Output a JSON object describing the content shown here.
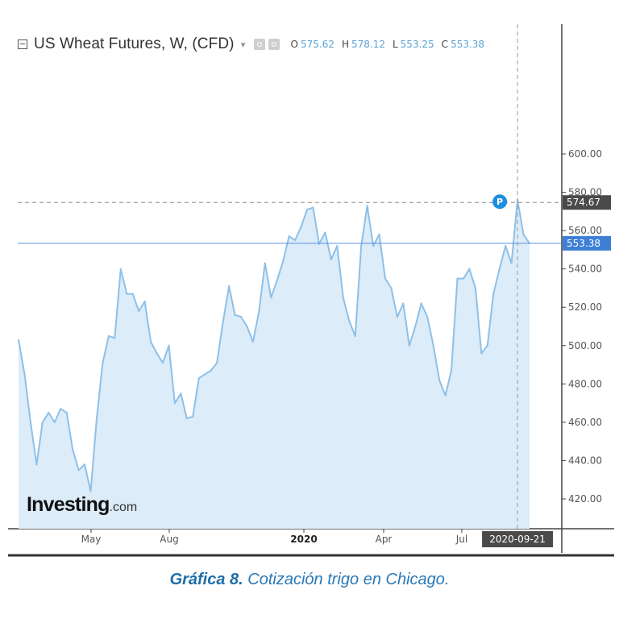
{
  "header": {
    "title": "US Wheat Futures, W, (CFD)",
    "ohlc": [
      {
        "key": "O",
        "value": "575.62"
      },
      {
        "key": "H",
        "value": "578.12"
      },
      {
        "key": "L",
        "value": "553.25"
      },
      {
        "key": "C",
        "value": "553.38"
      }
    ]
  },
  "logo": {
    "brand": "Investing",
    "suffix": ".com"
  },
  "caption": {
    "label": "Gráfica 8.",
    "text": "Cotización trigo en Chicago."
  },
  "colors": {
    "line": "#8ec0e8",
    "fill": "#dcecf8",
    "price_label_bg": "#3d7fd6",
    "crosshair_label_bg": "#4a4a4a",
    "p_marker": "#1d8fe0",
    "caption": "#2a78b6"
  },
  "chart_data": {
    "type": "area",
    "title": "US Wheat Futures, W, (CFD)",
    "xlabel": "",
    "ylabel": "",
    "ylim": [
      410,
      610
    ],
    "grid": false,
    "x_ticks": [
      "May",
      "Aug",
      "2020",
      "Apr",
      "Jul"
    ],
    "y_ticks": [
      "420.00",
      "440.00",
      "460.00",
      "480.00",
      "500.00",
      "520.00",
      "540.00",
      "560.00",
      "580.00",
      "600.00"
    ],
    "current_price": {
      "value": 553.38,
      "label": "553.38"
    },
    "crosshair": {
      "value": 574.67,
      "label": "574.67",
      "date": "2020-09-21"
    },
    "marker": {
      "label": "P"
    },
    "series": [
      {
        "values": [
          503,
          485,
          460,
          438,
          460,
          465,
          460,
          467,
          465,
          446,
          435,
          438,
          424,
          462,
          491,
          505,
          504,
          540,
          527,
          527,
          518,
          523,
          502,
          496,
          491,
          500,
          470,
          475,
          462,
          463,
          483,
          485,
          487,
          491,
          512,
          531,
          516,
          515,
          510,
          502,
          518,
          543,
          525,
          534,
          544,
          557,
          555,
          562,
          571,
          572,
          553,
          559,
          545,
          552,
          525,
          513,
          505,
          552,
          573,
          552,
          558,
          535,
          530,
          515,
          522,
          500,
          510,
          522,
          515,
          500,
          482,
          474,
          487,
          535,
          535,
          540,
          530,
          496,
          500,
          527,
          540,
          552,
          543,
          576,
          558,
          553.38
        ]
      }
    ]
  }
}
